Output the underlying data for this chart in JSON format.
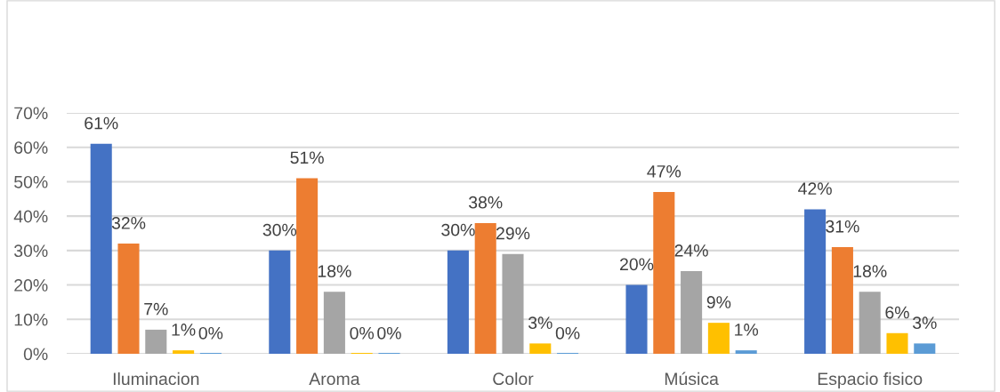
{
  "chart_data": {
    "type": "bar",
    "categories": [
      "Iluminacion",
      "Aroma",
      "Color",
      "Música",
      "Espacio fisico"
    ],
    "series": [
      {
        "color": "#4472c4",
        "values": [
          61,
          30,
          30,
          20,
          42
        ],
        "value_labels": [
          "61%",
          "30%",
          "30%",
          "20%",
          "42%"
        ]
      },
      {
        "color": "#ed7d31",
        "values": [
          32,
          51,
          38,
          47,
          31
        ],
        "value_labels": [
          "32%",
          "51%",
          "38%",
          "47%",
          "31%"
        ]
      },
      {
        "color": "#a5a5a5",
        "values": [
          7,
          18,
          29,
          24,
          18
        ],
        "value_labels": [
          "7%",
          "18%",
          "29%",
          "24%",
          "18%"
        ]
      },
      {
        "color": "#ffc000",
        "values": [
          1,
          0,
          3,
          9,
          6
        ],
        "value_labels": [
          "1%",
          "0%",
          "3%",
          "9%",
          "6%"
        ]
      },
      {
        "color": "#5b9bd5",
        "values": [
          0,
          0,
          0,
          1,
          3
        ],
        "value_labels": [
          "0%",
          "0%",
          "0%",
          "1%",
          "3%"
        ]
      }
    ],
    "ylim": [
      0,
      70
    ],
    "yticks": [
      {
        "value": 0,
        "label": "0%"
      },
      {
        "value": 10,
        "label": "10%"
      },
      {
        "value": 20,
        "label": "20%"
      },
      {
        "value": 30,
        "label": "30%"
      },
      {
        "value": 40,
        "label": "40%"
      },
      {
        "value": 50,
        "label": "50%"
      },
      {
        "value": 60,
        "label": "60%"
      },
      {
        "value": 70,
        "label": "70%"
      }
    ],
    "grid": "y"
  }
}
